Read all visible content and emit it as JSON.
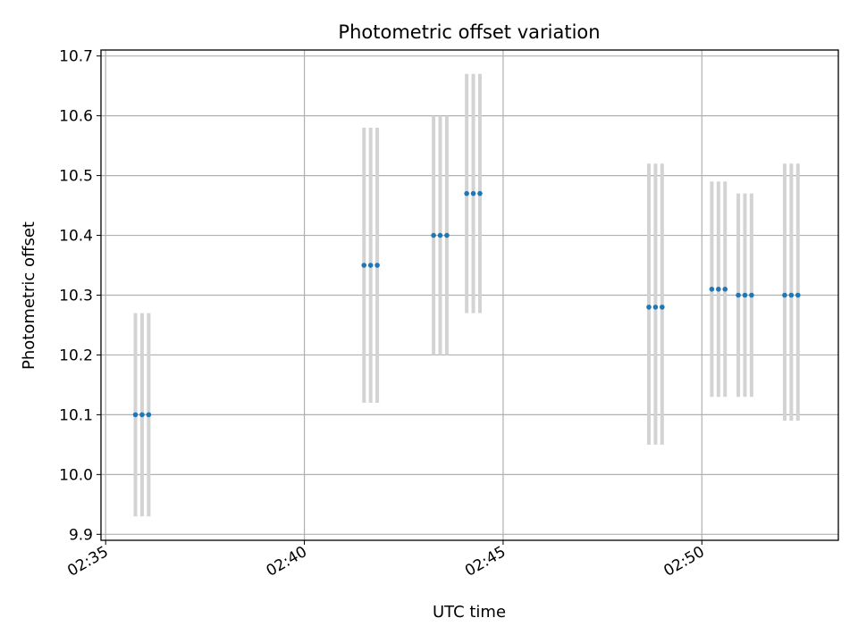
{
  "chart_data": {
    "type": "scatter",
    "title": "Photometric offset variation",
    "xlabel": "UTC time",
    "ylabel": "Photometric offset",
    "x_ticks": [
      "02:35",
      "02:40",
      "02:45",
      "02:50"
    ],
    "y_ticks": [
      "9.9",
      "10.0",
      "10.1",
      "10.2",
      "10.3",
      "10.4",
      "10.5",
      "10.6",
      "10.7"
    ],
    "xlim": [
      "02:34:53",
      "02:53:26"
    ],
    "ylim": [
      9.89,
      10.71
    ],
    "grid": true,
    "points": [
      {
        "time": "02:35:45",
        "value": 10.1,
        "err_low": 9.93,
        "err_high": 10.27
      },
      {
        "time": "02:35:55",
        "value": 10.1,
        "err_low": 9.93,
        "err_high": 10.27
      },
      {
        "time": "02:36:05",
        "value": 10.1,
        "err_low": 9.93,
        "err_high": 10.27
      },
      {
        "time": "02:41:30",
        "value": 10.35,
        "err_low": 10.12,
        "err_high": 10.58
      },
      {
        "time": "02:41:40",
        "value": 10.35,
        "err_low": 10.12,
        "err_high": 10.58
      },
      {
        "time": "02:41:50",
        "value": 10.35,
        "err_low": 10.12,
        "err_high": 10.58
      },
      {
        "time": "02:43:15",
        "value": 10.4,
        "err_low": 10.2,
        "err_high": 10.6
      },
      {
        "time": "02:43:25",
        "value": 10.4,
        "err_low": 10.2,
        "err_high": 10.6
      },
      {
        "time": "02:43:35",
        "value": 10.4,
        "err_low": 10.2,
        "err_high": 10.6
      },
      {
        "time": "02:44:05",
        "value": 10.47,
        "err_low": 10.27,
        "err_high": 10.67
      },
      {
        "time": "02:44:15",
        "value": 10.47,
        "err_low": 10.27,
        "err_high": 10.67
      },
      {
        "time": "02:44:25",
        "value": 10.47,
        "err_low": 10.27,
        "err_high": 10.67
      },
      {
        "time": "02:48:40",
        "value": 10.28,
        "err_low": 10.05,
        "err_high": 10.52
      },
      {
        "time": "02:48:50",
        "value": 10.28,
        "err_low": 10.05,
        "err_high": 10.52
      },
      {
        "time": "02:49:00",
        "value": 10.28,
        "err_low": 10.05,
        "err_high": 10.52
      },
      {
        "time": "02:50:15",
        "value": 10.31,
        "err_low": 10.13,
        "err_high": 10.49
      },
      {
        "time": "02:50:25",
        "value": 10.31,
        "err_low": 10.13,
        "err_high": 10.49
      },
      {
        "time": "02:50:35",
        "value": 10.31,
        "err_low": 10.13,
        "err_high": 10.49
      },
      {
        "time": "02:50:55",
        "value": 10.3,
        "err_low": 10.13,
        "err_high": 10.47
      },
      {
        "time": "02:51:05",
        "value": 10.3,
        "err_low": 10.13,
        "err_high": 10.47
      },
      {
        "time": "02:51:15",
        "value": 10.3,
        "err_low": 10.13,
        "err_high": 10.47
      },
      {
        "time": "02:52:05",
        "value": 10.3,
        "err_low": 10.09,
        "err_high": 10.52
      },
      {
        "time": "02:52:15",
        "value": 10.3,
        "err_low": 10.09,
        "err_high": 10.52
      },
      {
        "time": "02:52:25",
        "value": 10.3,
        "err_low": 10.09,
        "err_high": 10.52
      }
    ],
    "colors": {
      "marker": "#1f77b4",
      "errorbar": "#d3d3d3",
      "grid": "#b0b0b0",
      "axes": "#000000"
    }
  }
}
